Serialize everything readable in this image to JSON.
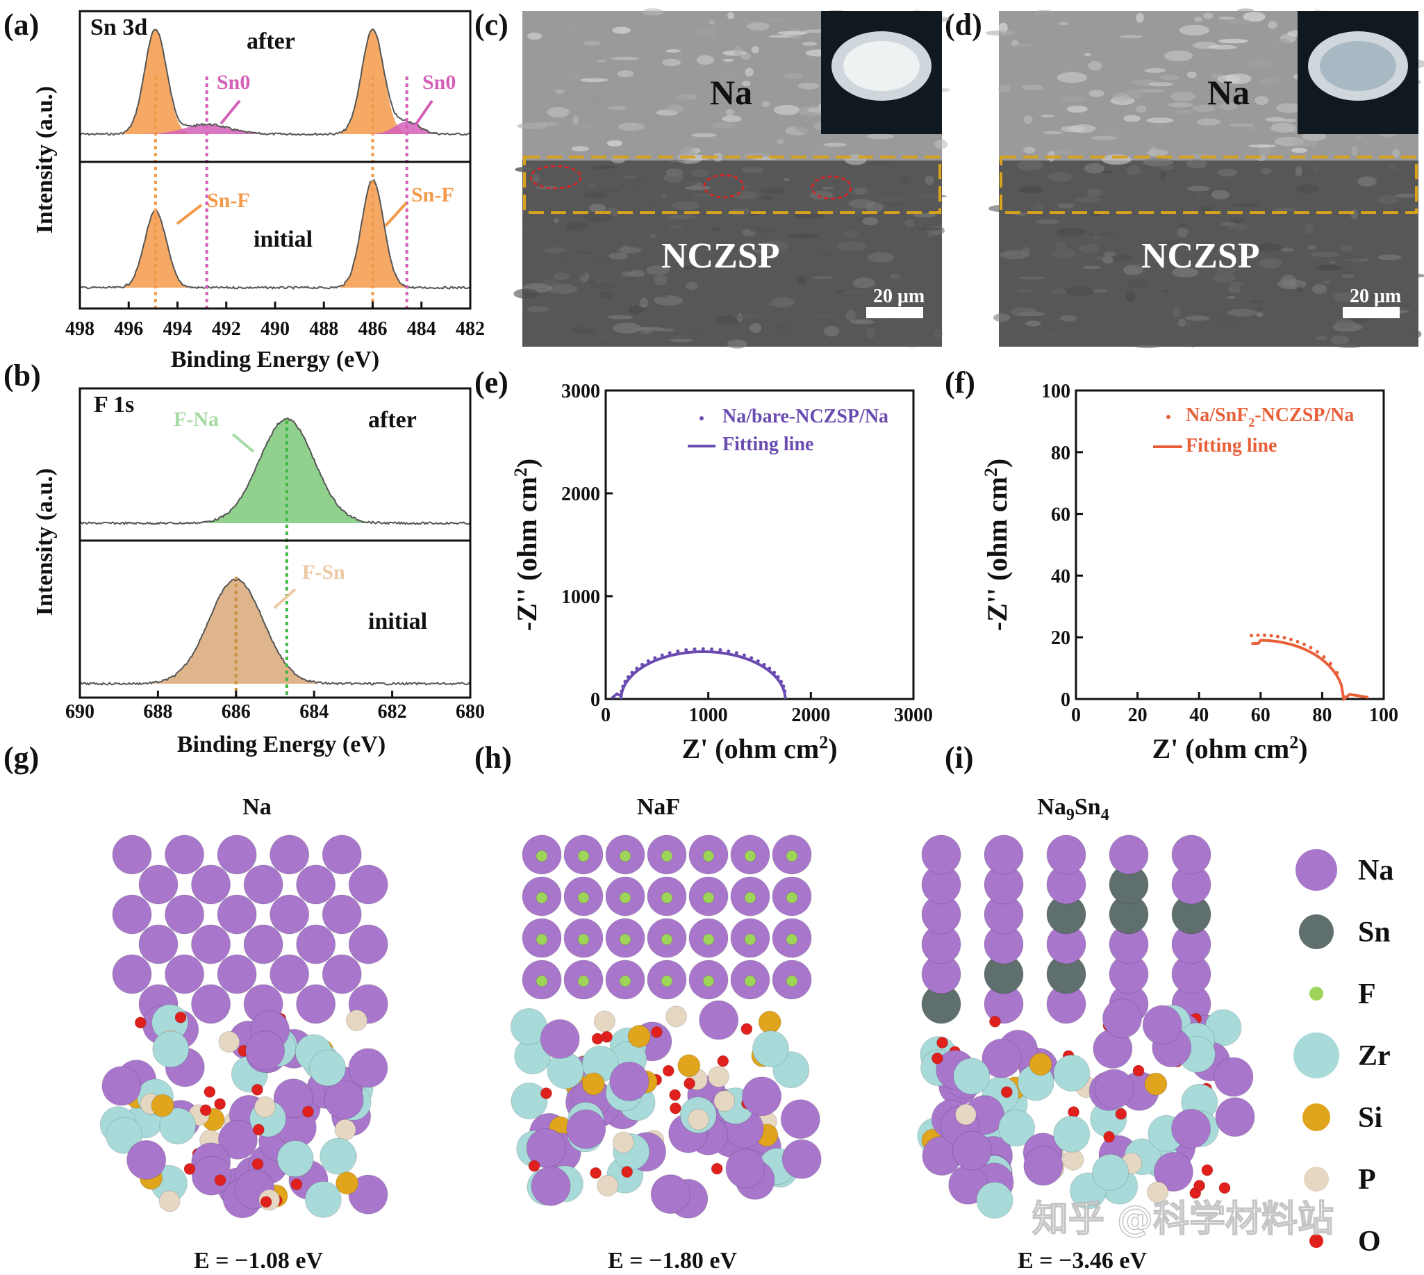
{
  "panel_labels": {
    "a": "(a)",
    "b": "(b)",
    "c": "(c)",
    "d": "(d)",
    "e": "(e)",
    "f": "(f)",
    "g": "(g)",
    "h": "(h)",
    "i": "(i)"
  },
  "colors": {
    "orange": "#f39a4a",
    "pink": "#d460b8",
    "green": "#7cc97a",
    "tan": "#d9a878",
    "purple": "#6a4bb0",
    "red": "#e8603a",
    "gold": "#d7a21c",
    "na": "#a877cc",
    "sn": "#5f6f6d",
    "f": "#9fd45a",
    "zr": "#a9dada",
    "si": "#e0a51c",
    "p": "#e6d7c3",
    "o": "#e0201c"
  },
  "chart_data": [
    {
      "type": "line",
      "panel": "a",
      "title": "Sn 3d",
      "xlabel": "Binding Energy (eV)",
      "ylabel": "Intensity (a.u.)",
      "xlim": [
        498,
        482
      ],
      "xticks": [
        "498",
        "496",
        "494",
        "492",
        "490",
        "488",
        "486",
        "484",
        "482"
      ],
      "series": [
        {
          "name": "after",
          "peaks": [
            {
              "label": "Sn-F",
              "center": 494.9
            },
            {
              "label": "Sn-F",
              "center": 486.0
            },
            {
              "label": "Sn0",
              "center": 492.8
            },
            {
              "label": "Sn0",
              "center": 484.6
            }
          ]
        },
        {
          "name": "initial",
          "peaks": [
            {
              "label": "Sn-F",
              "center": 494.9
            },
            {
              "label": "Sn-F",
              "center": 486.0
            }
          ]
        }
      ],
      "annotations": {
        "sn0": "Sn",
        "sn0_sup": "0",
        "snf": "Sn-F",
        "after": "after",
        "initial": "initial"
      }
    },
    {
      "type": "line",
      "panel": "b",
      "title": "F 1s",
      "xlabel": "Binding Energy (eV)",
      "ylabel": "Intensity (a.u.)",
      "xlim": [
        690,
        680
      ],
      "xticks": [
        "690",
        "688",
        "686",
        "684",
        "682",
        "680"
      ],
      "series": [
        {
          "name": "after",
          "peaks": [
            {
              "label": "F-Na",
              "center": 684.7
            }
          ]
        },
        {
          "name": "initial",
          "peaks": [
            {
              "label": "F-Sn",
              "center": 686.0
            }
          ]
        }
      ],
      "annotations": {
        "fna": "F-Na",
        "fsn": "F-Sn",
        "after": "after",
        "initial": "initial"
      }
    },
    {
      "type": "scatter",
      "panel": "e",
      "xlabel": "Z' (ohm cm",
      "ylabel": "-Z'' (ohm cm",
      "unit_sup": "2",
      "xlim": [
        0,
        3000
      ],
      "ylim": [
        0,
        3000
      ],
      "xticks": [
        "0",
        "1000",
        "2000",
        "3000"
      ],
      "yticks": [
        "0",
        "1000",
        "2000",
        "3000"
      ],
      "series": [
        {
          "name": "Na/bare-NCZSP/Na",
          "semicircle": {
            "start": 150,
            "end": 1750,
            "max": 460
          }
        },
        {
          "name": "Fitting line"
        }
      ]
    },
    {
      "type": "scatter",
      "panel": "f",
      "xlabel": "Z' (ohm cm",
      "ylabel": "-Z'' (ohm cm",
      "unit_sup": "2",
      "xlim": [
        0,
        100
      ],
      "ylim": [
        0,
        100
      ],
      "xticks": [
        "0",
        "20",
        "40",
        "60",
        "80",
        "100"
      ],
      "yticks": [
        "0",
        "20",
        "40",
        "60",
        "80",
        "100"
      ],
      "series": [
        {
          "name_main": "Na/SnF",
          "name_sub": "2",
          "name_end": "-NCZSP/Na",
          "arc": {
            "start": 57,
            "end": 87,
            "max": 19,
            "tail_end": 95
          }
        },
        {
          "name": "Fitting line"
        }
      ]
    }
  ],
  "sem_c": {
    "na": "Na",
    "nczsp": "NCZSP",
    "scale": "20 μm"
  },
  "sem_d": {
    "na": "Na",
    "nczsp": "NCZSP",
    "scale": "20 μm"
  },
  "structures": [
    {
      "title": "Na",
      "energy": "E = −1.08 eV"
    },
    {
      "title": "NaF",
      "energy": "E = −1.80 eV"
    },
    {
      "title_main": "Na",
      "title_s1": "9",
      "title_mid": "Sn",
      "title_s2": "4",
      "energy": "E = −3.46 eV"
    }
  ],
  "legend": [
    "Na",
    "Sn",
    "F",
    "Zr",
    "Si",
    "P",
    "O"
  ],
  "watermark": "知乎 @科学材料站"
}
